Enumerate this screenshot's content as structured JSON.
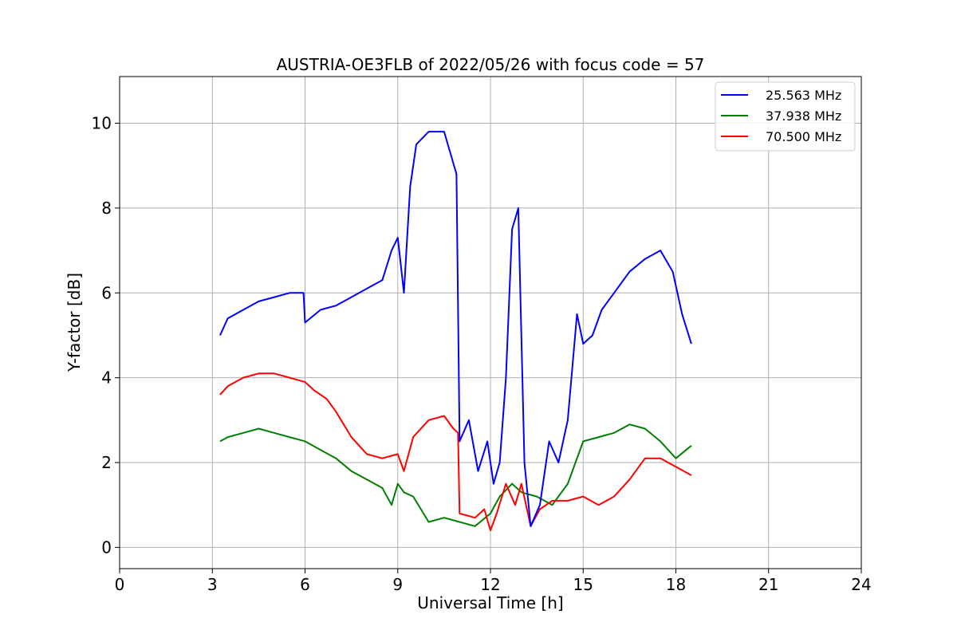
{
  "chart_data": {
    "type": "line",
    "title": "AUSTRIA-OE3FLB of 2022/05/26 with focus code = 57",
    "xlabel": "Universal Time [h]",
    "ylabel": "Y-factor [dB]",
    "xlim": [
      0,
      24
    ],
    "ylim": [
      -0.5,
      11.1
    ],
    "xticks": [
      0,
      3,
      6,
      9,
      12,
      15,
      18,
      21,
      24
    ],
    "xtick_labels": [
      "0",
      "3",
      "6",
      "9",
      "12",
      "15",
      "18",
      "21",
      "24"
    ],
    "yticks": [
      0,
      2,
      4,
      6,
      8,
      10
    ],
    "ytick_labels": [
      "0",
      "2",
      "4",
      "6",
      "8",
      "10"
    ],
    "grid": true,
    "legend_position": "top-right",
    "series": [
      {
        "name": "25.563 MHz",
        "color": "#0000ff",
        "x": [
          3.25,
          3.5,
          4.0,
          4.5,
          5.0,
          5.5,
          5.95,
          6.0,
          6.5,
          7.0,
          7.5,
          8.0,
          8.5,
          8.8,
          9.0,
          9.2,
          9.4,
          9.6,
          10.0,
          10.5,
          10.9,
          11.0,
          11.3,
          11.6,
          11.9,
          12.1,
          12.3,
          12.5,
          12.7,
          12.9,
          13.1,
          13.3,
          13.6,
          13.9,
          14.2,
          14.5,
          14.8,
          15.0,
          15.3,
          15.6,
          16.0,
          16.5,
          17.0,
          17.5,
          17.9,
          18.2,
          18.5
        ],
        "y": [
          5.0,
          5.4,
          5.6,
          5.8,
          5.9,
          6.0,
          6.0,
          5.3,
          5.6,
          5.7,
          5.9,
          6.1,
          6.3,
          7.0,
          7.3,
          6.0,
          8.5,
          9.5,
          9.8,
          9.8,
          8.8,
          2.5,
          3.0,
          1.8,
          2.5,
          1.5,
          2.0,
          4.0,
          7.5,
          8.0,
          2.0,
          0.5,
          1.0,
          2.5,
          2.0,
          3.0,
          5.5,
          4.8,
          5.0,
          5.6,
          6.0,
          6.5,
          6.8,
          7.0,
          6.5,
          5.5,
          4.8
        ]
      },
      {
        "name": "37.938 MHz",
        "color": "#008000",
        "x": [
          3.25,
          3.5,
          4.0,
          4.5,
          5.0,
          5.5,
          6.0,
          6.5,
          7.0,
          7.5,
          8.0,
          8.5,
          8.8,
          9.0,
          9.2,
          9.5,
          10.0,
          10.5,
          11.0,
          11.5,
          12.0,
          12.3,
          12.7,
          13.0,
          13.5,
          14.0,
          14.5,
          15.0,
          15.5,
          16.0,
          16.5,
          17.0,
          17.5,
          18.0,
          18.5
        ],
        "y": [
          2.5,
          2.6,
          2.7,
          2.8,
          2.7,
          2.6,
          2.5,
          2.3,
          2.1,
          1.8,
          1.6,
          1.4,
          1.0,
          1.5,
          1.3,
          1.2,
          0.6,
          0.7,
          0.6,
          0.5,
          0.8,
          1.2,
          1.5,
          1.3,
          1.2,
          1.0,
          1.5,
          2.5,
          2.6,
          2.7,
          2.9,
          2.8,
          2.5,
          2.1,
          2.4
        ]
      },
      {
        "name": "70.500 MHz",
        "color": "#ff0000",
        "x": [
          3.25,
          3.5,
          4.0,
          4.5,
          5.0,
          5.5,
          6.0,
          6.3,
          6.7,
          7.0,
          7.5,
          8.0,
          8.5,
          9.0,
          9.2,
          9.5,
          10.0,
          10.5,
          10.8,
          10.95,
          11.0,
          11.5,
          11.8,
          12.0,
          12.2,
          12.5,
          12.8,
          13.0,
          13.3,
          13.6,
          14.0,
          14.5,
          15.0,
          15.5,
          16.0,
          16.5,
          17.0,
          17.5,
          18.0,
          18.5
        ],
        "y": [
          3.6,
          3.8,
          4.0,
          4.1,
          4.1,
          4.0,
          3.9,
          3.7,
          3.5,
          3.2,
          2.6,
          2.2,
          2.1,
          2.2,
          1.8,
          2.6,
          3.0,
          3.1,
          2.8,
          2.7,
          0.8,
          0.7,
          0.9,
          0.4,
          0.8,
          1.5,
          1.0,
          1.5,
          0.5,
          0.9,
          1.1,
          1.1,
          1.2,
          1.0,
          1.2,
          1.6,
          2.1,
          2.1,
          1.9,
          1.7
        ]
      }
    ]
  }
}
